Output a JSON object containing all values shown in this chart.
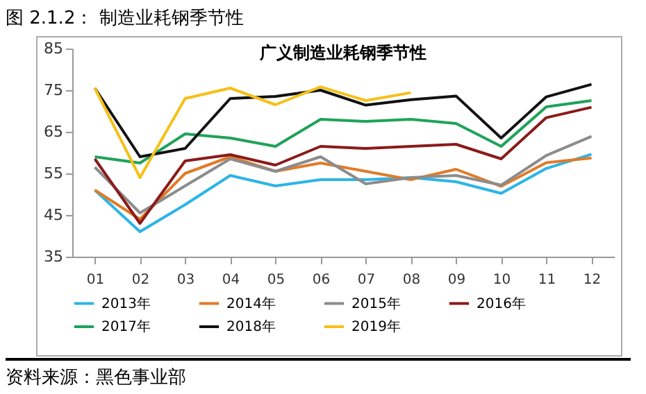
{
  "chart_data": {
    "type": "line",
    "title": "图 2.1.2： 制造业耗钢季节性",
    "subtitle": "广义制造业耗钢季节性",
    "categories": [
      "01",
      "02",
      "03",
      "04",
      "05",
      "06",
      "07",
      "08",
      "09",
      "10",
      "11",
      "12"
    ],
    "ylim": [
      35,
      85
    ],
    "yticks": [
      35,
      45,
      55,
      65,
      75,
      85
    ],
    "grid": false,
    "legend": "bottom",
    "marker": "none",
    "line_style": "solid",
    "series": [
      {
        "name": "2013年",
        "color": "#2cb5e6",
        "values": [
          51,
          41,
          47.5,
          54.5,
          52,
          53.5,
          53.5,
          54,
          53,
          50.2,
          56.2,
          59.6
        ]
      },
      {
        "name": "2014年",
        "color": "#e07b29",
        "values": [
          51,
          44,
          55,
          59,
          55.5,
          57.5,
          55.5,
          53.5,
          56,
          51.9,
          57.6,
          58.7
        ]
      },
      {
        "name": "2015年",
        "color": "#8c8c8c",
        "values": [
          56.5,
          45.5,
          52,
          58.5,
          55.5,
          59,
          52.5,
          54,
          54.5,
          52.2,
          59.3,
          63.9
        ]
      },
      {
        "name": "2016年",
        "color": "#8b1a1a",
        "values": [
          58.5,
          43,
          58,
          59.5,
          57,
          61.5,
          61,
          61.5,
          62,
          58.5,
          68.4,
          70.9
        ]
      },
      {
        "name": "2017年",
        "color": "#1fa35a",
        "values": [
          59,
          57.5,
          64.5,
          63.5,
          61.5,
          68,
          67.5,
          68,
          67,
          61.5,
          71,
          72.5
        ]
      },
      {
        "name": "2018年",
        "color": "#111111",
        "values": [
          75.5,
          59,
          61,
          73,
          73.5,
          75,
          71.4,
          72.7,
          73.6,
          63.5,
          73.4,
          76.4
        ]
      },
      {
        "name": "2019年",
        "color": "#f5c018",
        "values": [
          75.5,
          54,
          73,
          75.5,
          71.5,
          75.8,
          72.5,
          74.4,
          null,
          null,
          null,
          null
        ]
      }
    ],
    "annotations": [
      "资料来源：黑色事业部"
    ]
  }
}
